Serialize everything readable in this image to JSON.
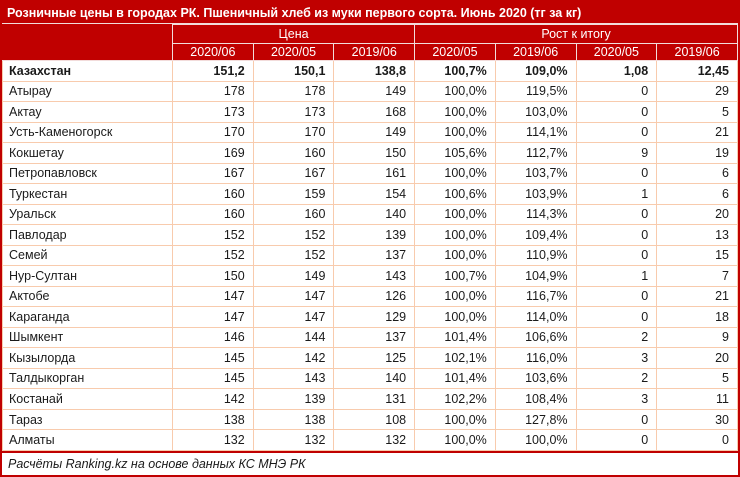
{
  "title": "Розничные цены в городах РК. Пшеничный хлеб из муки первого сорта. Июнь 2020 (тг за кг)",
  "chart_data": {
    "type": "table",
    "title": "Розничные цены в городах РК. Пшеничный хлеб из муки первого сорта. Июнь 2020 (тг за кг)",
    "column_groups": [
      {
        "label": "Цена",
        "span": 3
      },
      {
        "label": "Рост к итогу",
        "span": 4
      }
    ],
    "columns": [
      "2020/06",
      "2020/05",
      "2019/06",
      "2020/05",
      "2019/06",
      "2020/05",
      "2019/06"
    ],
    "rows": [
      {
        "name": "Казахстан",
        "values": [
          "151,2",
          "150,1",
          "138,8",
          "100,7%",
          "109,0%",
          "1,08",
          "12,45"
        ],
        "bold": true
      },
      {
        "name": "Атырау",
        "values": [
          "178",
          "178",
          "149",
          "100,0%",
          "119,5%",
          "0",
          "29"
        ],
        "bold": false
      },
      {
        "name": "Актау",
        "values": [
          "173",
          "173",
          "168",
          "100,0%",
          "103,0%",
          "0",
          "5"
        ],
        "bold": false
      },
      {
        "name": "Усть-Каменогорск",
        "values": [
          "170",
          "170",
          "149",
          "100,0%",
          "114,1%",
          "0",
          "21"
        ],
        "bold": false
      },
      {
        "name": "Кокшетау",
        "values": [
          "169",
          "160",
          "150",
          "105,6%",
          "112,7%",
          "9",
          "19"
        ],
        "bold": false
      },
      {
        "name": "Петропавловск",
        "values": [
          "167",
          "167",
          "161",
          "100,0%",
          "103,7%",
          "0",
          "6"
        ],
        "bold": false
      },
      {
        "name": "Туркестан",
        "values": [
          "160",
          "159",
          "154",
          "100,6%",
          "103,9%",
          "1",
          "6"
        ],
        "bold": false
      },
      {
        "name": "Уральск",
        "values": [
          "160",
          "160",
          "140",
          "100,0%",
          "114,3%",
          "0",
          "20"
        ],
        "bold": false
      },
      {
        "name": "Павлодар",
        "values": [
          "152",
          "152",
          "139",
          "100,0%",
          "109,4%",
          "0",
          "13"
        ],
        "bold": false
      },
      {
        "name": "Семей",
        "values": [
          "152",
          "152",
          "137",
          "100,0%",
          "110,9%",
          "0",
          "15"
        ],
        "bold": false
      },
      {
        "name": "Нур-Султан",
        "values": [
          "150",
          "149",
          "143",
          "100,7%",
          "104,9%",
          "1",
          "7"
        ],
        "bold": false
      },
      {
        "name": "Актобе",
        "values": [
          "147",
          "147",
          "126",
          "100,0%",
          "116,7%",
          "0",
          "21"
        ],
        "bold": false
      },
      {
        "name": "Караганда",
        "values": [
          "147",
          "147",
          "129",
          "100,0%",
          "114,0%",
          "0",
          "18"
        ],
        "bold": false
      },
      {
        "name": "Шымкент",
        "values": [
          "146",
          "144",
          "137",
          "101,4%",
          "106,6%",
          "2",
          "9"
        ],
        "bold": false
      },
      {
        "name": "Кызылорда",
        "values": [
          "145",
          "142",
          "125",
          "102,1%",
          "116,0%",
          "3",
          "20"
        ],
        "bold": false
      },
      {
        "name": "Талдыкорган",
        "values": [
          "145",
          "143",
          "140",
          "101,4%",
          "103,6%",
          "2",
          "5"
        ],
        "bold": false
      },
      {
        "name": "Костанай",
        "values": [
          "142",
          "139",
          "131",
          "102,2%",
          "108,4%",
          "3",
          "11"
        ],
        "bold": false
      },
      {
        "name": "Тараз",
        "values": [
          "138",
          "138",
          "108",
          "100,0%",
          "127,8%",
          "0",
          "30"
        ],
        "bold": false
      },
      {
        "name": "Алматы",
        "values": [
          "132",
          "132",
          "132",
          "100,0%",
          "100,0%",
          "0",
          "0"
        ],
        "bold": false
      }
    ],
    "source_note": "Расчёты Ranking.kz на основе данных КС МНЭ РК"
  },
  "colors": {
    "header_bg": "#C00000",
    "header_text": "#FFFFFF",
    "header_border": "#F2DCDB",
    "cell_border": "#F8CBAD",
    "row_bg": "#FFFFFF",
    "text": "#1A1A1A"
  }
}
